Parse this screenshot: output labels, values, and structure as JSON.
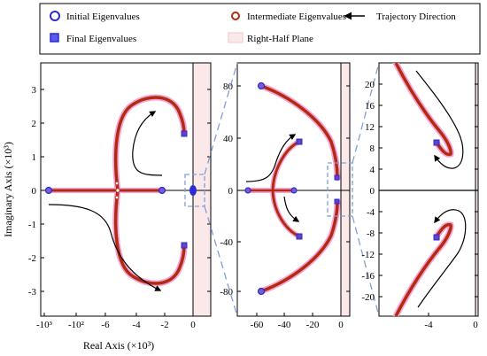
{
  "legend": {
    "initial": "Initial Eigenvalues",
    "intermediate": "Intermediate Eigenvalues",
    "trajectory": "Trajectory Direction",
    "final": "Final Eigenvalues",
    "rhp": "Right-Half Plane"
  },
  "colors": {
    "trajectory": "#b22a10",
    "halo": "#f3a6d6",
    "marker": "#2b2bd4",
    "rhp_fill": "#fbe9ea",
    "zoom_lines": "#7f9fd8"
  },
  "chart_data": [
    {
      "type": "scatter",
      "panel": "overview",
      "xlabel": "Real Axis (×10³)",
      "ylabel": "Imaginary Axis (×10³)",
      "xticks": [
        "-10³",
        "-10²",
        "-6",
        "-4",
        "-2",
        "0"
      ],
      "yticks": [
        "3",
        "2",
        "1",
        "0",
        "-1",
        "-2",
        "-3"
      ],
      "ylim": [
        -3.5,
        3.5
      ],
      "initial_eigenvalues": [
        [
          -1000,
          0.0
        ],
        [
          -2.3,
          0.0
        ]
      ],
      "final_eigenvalues": [
        [
          -0.6,
          1.65
        ],
        [
          -0.6,
          -1.65
        ]
      ],
      "upper_branch": [
        [
          -5.8,
          0.0
        ],
        [
          -5.6,
          1.1
        ],
        [
          -5.0,
          2.1
        ],
        [
          -4.2,
          2.6
        ],
        [
          -3.1,
          2.7
        ],
        [
          -2.0,
          2.45
        ],
        [
          -1.1,
          2.05
        ],
        [
          -0.6,
          1.65
        ]
      ],
      "lower_branch": [
        [
          -5.8,
          0.0
        ],
        [
          -5.6,
          -1.1
        ],
        [
          -5.0,
          -2.1
        ],
        [
          -4.2,
          -2.6
        ],
        [
          -3.1,
          -2.7
        ],
        [
          -2.0,
          -2.45
        ],
        [
          -1.1,
          -2.05
        ],
        [
          -0.6,
          -1.65
        ]
      ]
    },
    {
      "type": "scatter",
      "panel": "zoom-1",
      "xticks": [
        "-60",
        "-40",
        "-20",
        "0"
      ],
      "yticks": [
        "80",
        "40",
        "0",
        "-40",
        "-80"
      ],
      "xlim": [
        -68,
        5
      ],
      "ylim": [
        -100,
        100
      ],
      "initial_eigenvalues": [
        [
          -57,
          80
        ],
        [
          -57,
          -80
        ],
        [
          -67,
          0
        ],
        [
          -35,
          0
        ]
      ],
      "final_eigenvalues": [
        [
          -32,
          37
        ],
        [
          -32,
          -37
        ],
        [
          -2,
          10
        ],
        [
          -2,
          -10
        ]
      ]
    },
    {
      "type": "scatter",
      "panel": "zoom-2",
      "xticks": [
        "-4",
        "0"
      ],
      "yticks_upper": [
        "20",
        "16",
        "12",
        "8",
        "4",
        "0"
      ],
      "yticks_lower": [
        "-4",
        "-8",
        "-12",
        "-16",
        "-20"
      ],
      "xlim": [
        -7,
        0.3
      ],
      "ylim_upper": [
        0,
        23
      ],
      "ylim_lower": [
        -23,
        0
      ],
      "final_eigenvalues": [
        [
          -3.5,
          9
        ],
        [
          -3.5,
          -9
        ]
      ],
      "upper_branch": [
        [
          -6.2,
          23
        ],
        [
          -4.8,
          17
        ],
        [
          -3.2,
          11.5
        ],
        [
          -2.2,
          7.5
        ],
        [
          -1.9,
          6.8
        ],
        [
          -2.4,
          7.6
        ],
        [
          -3.5,
          9
        ]
      ],
      "lower_branch": [
        [
          -6.2,
          -23
        ],
        [
          -4.8,
          -17
        ],
        [
          -3.2,
          -11.5
        ],
        [
          -2.2,
          -7.5
        ],
        [
          -1.9,
          -6.8
        ],
        [
          -2.4,
          -7.6
        ],
        [
          -3.5,
          -9
        ]
      ]
    }
  ]
}
